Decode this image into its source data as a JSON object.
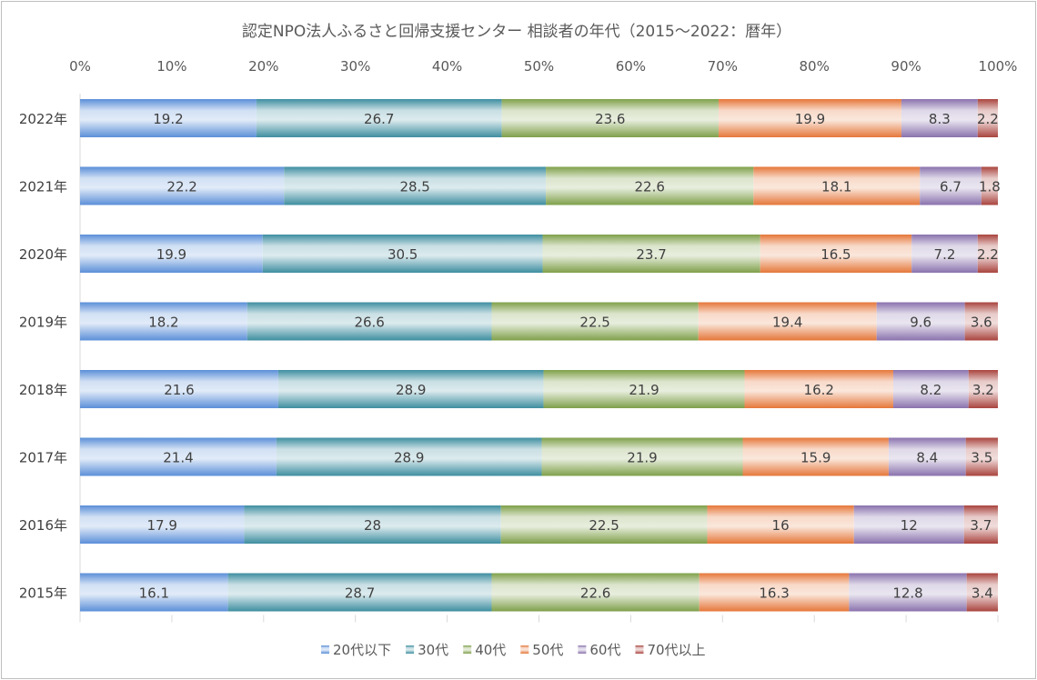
{
  "colors": {
    "20s_or_less": "#5b8fd8",
    "30s": "#3e8ea0",
    "40s": "#7fa04a",
    "50s": "#e5773a",
    "60s": "#8a72ad",
    "70s_plus": "#a9443e"
  },
  "chart_data": {
    "type": "bar",
    "orientation": "horizontal",
    "stacked": "percent",
    "title": "認定NPO法人ふるさと回帰支援センター 相談者の年代（2015～2022：暦年）",
    "categories": [
      "2022年",
      "2021年",
      "2020年",
      "2019年",
      "2018年",
      "2017年",
      "2016年",
      "2015年"
    ],
    "x_ticks": [
      "0%",
      "10%",
      "20%",
      "30%",
      "40%",
      "50%",
      "60%",
      "70%",
      "80%",
      "90%",
      "100%"
    ],
    "xlim": [
      0,
      100
    ],
    "x_axis_position": "top",
    "legend_position": "bottom",
    "grid": false,
    "series": [
      {
        "name": "20代以下",
        "color_key": "20s_or_less",
        "values": [
          19.2,
          22.2,
          19.9,
          18.2,
          21.6,
          21.4,
          17.9,
          16.1
        ],
        "labels": [
          "19.2",
          "22.2",
          "19.9",
          "18.2",
          "21.6",
          "21.4",
          "17.9",
          "16.1"
        ]
      },
      {
        "name": "30代",
        "color_key": "30s",
        "values": [
          26.7,
          28.5,
          30.5,
          26.6,
          28.9,
          28.9,
          28,
          28.7
        ],
        "labels": [
          "26.7",
          "28.5",
          "30.5",
          "26.6",
          "28.9",
          "28.9",
          "28",
          "28.7"
        ]
      },
      {
        "name": "40代",
        "color_key": "40s",
        "values": [
          23.6,
          22.6,
          23.7,
          22.5,
          21.9,
          21.9,
          22.5,
          22.6
        ],
        "labels": [
          "23.6",
          "22.6",
          "23.7",
          "22.5",
          "21.9",
          "21.9",
          "22.5",
          "22.6"
        ]
      },
      {
        "name": "50代",
        "color_key": "50s",
        "values": [
          19.9,
          18.1,
          16.5,
          19.4,
          16.2,
          15.9,
          16,
          16.3
        ],
        "labels": [
          "19.9",
          "18.1",
          "16.5",
          "19.4",
          "16.2",
          "15.9",
          "16",
          "16.3"
        ]
      },
      {
        "name": "60代",
        "color_key": "60s",
        "values": [
          8.3,
          6.7,
          7.2,
          9.6,
          8.2,
          8.4,
          12,
          12.8
        ],
        "labels": [
          "8.3",
          "6.7",
          "7.2",
          "9.6",
          "8.2",
          "8.4",
          "12",
          "12.8"
        ]
      },
      {
        "name": "70代以上",
        "color_key": "70s_plus",
        "values": [
          2.2,
          1.8,
          2.2,
          3.6,
          3.2,
          3.5,
          3.7,
          3.4
        ],
        "labels": [
          "2.2",
          "1.8",
          "2.2",
          "3.6",
          "3.2",
          "3.5",
          "3.7",
          "3.4"
        ]
      }
    ]
  }
}
